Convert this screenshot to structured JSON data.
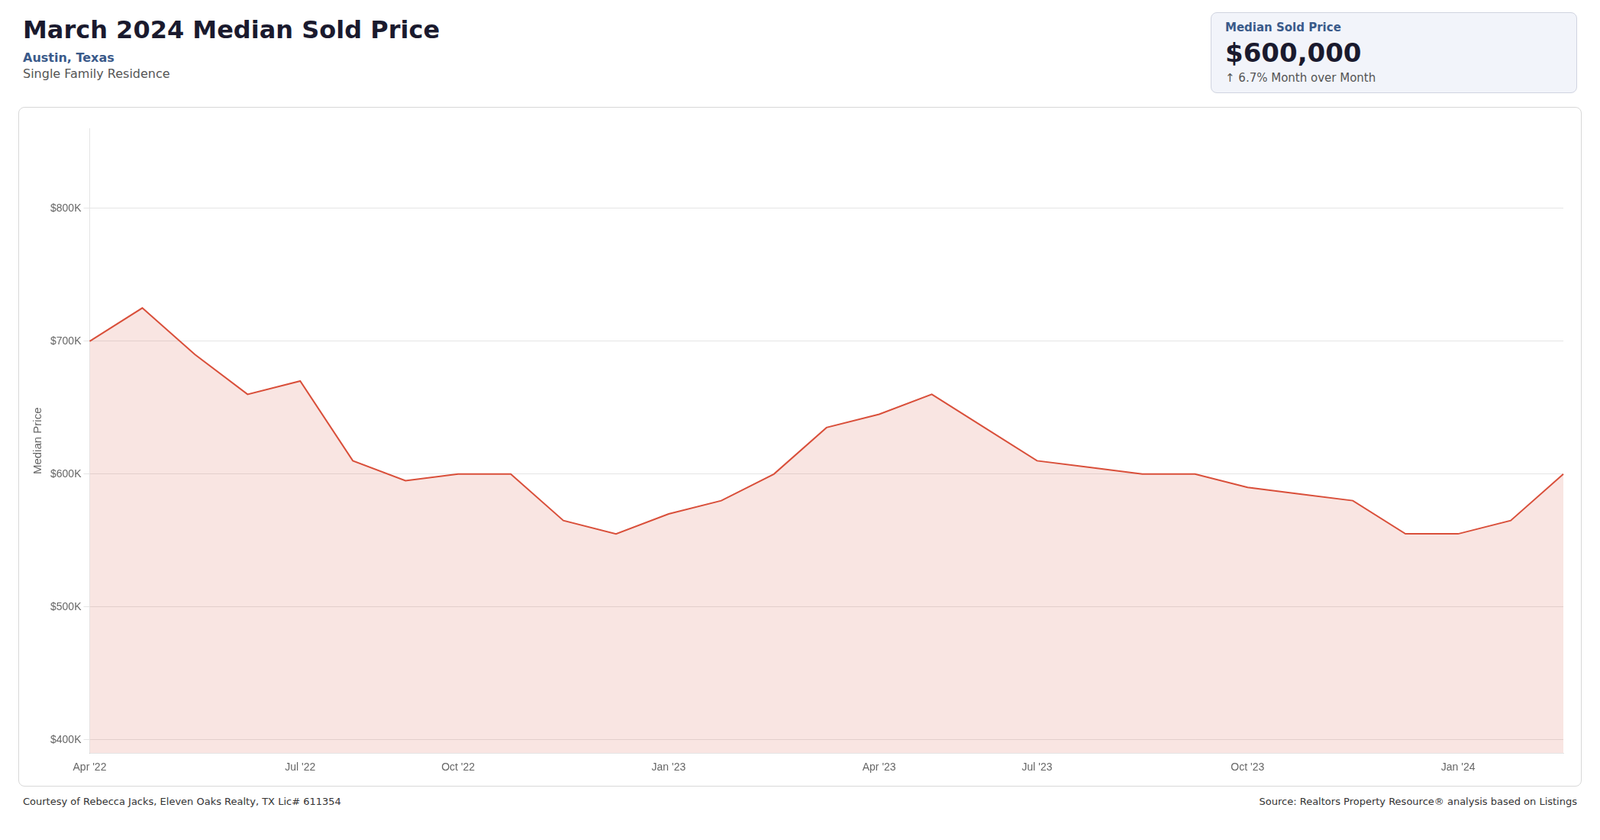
{
  "chart_data": {
    "type": "area",
    "title": "March 2024 Median Sold Price",
    "subtitle": [
      "Austin, Texas",
      "Single Family Residence"
    ],
    "annotations": [
      "Median Sold Price",
      "$600,000",
      "↑ 6.7% Month over Month",
      "Courtesy of Rebecca Jacks, Eleven Oaks Realty, TX Lic# 611354",
      "Source: Realtors Property Resource® analysis based on Listings"
    ],
    "y_label": "Median Price",
    "categories": [
      "Apr '22",
      null,
      null,
      null,
      "Jul '22",
      null,
      null,
      "Oct '22",
      null,
      null,
      null,
      "Jan '23",
      null,
      null,
      null,
      "Apr '23",
      null,
      null,
      "Jul '23",
      null,
      null,
      null,
      "Oct '23",
      null,
      null,
      null,
      "Jan '24",
      null,
      null
    ],
    "values": [
      700000,
      725000,
      690000,
      660000,
      670000,
      610000,
      595000,
      600000,
      600000,
      565000,
      555000,
      570000,
      580000,
      600000,
      635000,
      645000,
      660000,
      635000,
      610000,
      605000,
      600000,
      600000,
      590000,
      585000,
      580000,
      555000,
      555000,
      565000,
      600000
    ],
    "color": "#d94f3a",
    "ylim": [
      390000,
      860000
    ],
    "yticks": [
      {
        "value": 400000,
        "label": "$400K"
      },
      {
        "value": 500000,
        "label": "$500K"
      },
      {
        "value": 600000,
        "label": "$600K"
      },
      {
        "value": 700000,
        "label": "$700K"
      },
      {
        "value": 800000,
        "label": "$800K"
      }
    ],
    "grid": "y"
  }
}
